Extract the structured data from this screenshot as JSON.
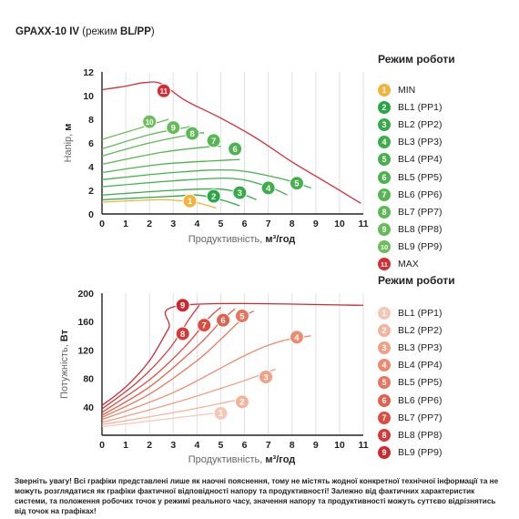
{
  "title": {
    "model": "GPAXX-10 IV",
    "mode_text": "(режим ",
    "mode_value": "BL/PP",
    "mode_close": ")"
  },
  "colors": {
    "green": [
      "#29a745",
      "#37ab49",
      "#3eae4a",
      "#45b04c",
      "#4eb34f",
      "#56b652",
      "#5db955",
      "#64bc57",
      "#6bbf59"
    ],
    "min": "#f3b33b",
    "max": "#d62d35",
    "red": [
      "#f5c8b6",
      "#f3b49c",
      "#f0a085",
      "#ec8b6f",
      "#e8765c",
      "#e2614d",
      "#dc4d41",
      "#d53a38",
      "#cc2a31"
    ],
    "axis": "#222222",
    "grid": "#e0e0e0"
  },
  "legend_head": {
    "title": "Режим роботи",
    "items": [
      {
        "badge": "1",
        "label": "MIN"
      },
      {
        "badge": "2",
        "label": "BL1 (PP1)"
      },
      {
        "badge": "3",
        "label": "BL2 (PP2)"
      },
      {
        "badge": "4",
        "label": "BL3 (PP3)"
      },
      {
        "badge": "5",
        "label": "BL4 (PP4)"
      },
      {
        "badge": "6",
        "label": "BL5 (PP5)"
      },
      {
        "badge": "7",
        "label": "BL6 (PP6)"
      },
      {
        "badge": "8",
        "label": "BL7 (PP7)"
      },
      {
        "badge": "9",
        "label": "BL8 (PP8)"
      },
      {
        "badge": "10",
        "label": "BL9 (PP9)"
      },
      {
        "badge": "11",
        "label": "MAX"
      }
    ]
  },
  "legend_power": {
    "title": "Режим роботи",
    "items": [
      {
        "badge": "1",
        "label": "BL1 (PP1)"
      },
      {
        "badge": "2",
        "label": "BL2 (PP2)"
      },
      {
        "badge": "3",
        "label": "BL3 (PP3)"
      },
      {
        "badge": "4",
        "label": "BL4 (PP4)"
      },
      {
        "badge": "5",
        "label": "BL5 (PP5)"
      },
      {
        "badge": "6",
        "label": "BL6 (PP6)"
      },
      {
        "badge": "7",
        "label": "BL7 (PP7)"
      },
      {
        "badge": "8",
        "label": "BL8 (PP8)"
      },
      {
        "badge": "9",
        "label": "BL9 (PP9)"
      }
    ]
  },
  "note": "Зверніть увагу! Всі графіки представлені лише як наочні пояснення, тому не містять жодної конкретної технічної інформації та не можуть розглядатися як графіки фактичної відповідності напору та продуктивності! Залежно від фактичних характеристик системи, та положення робочих точок у режимі реального часу, значення напору та продуктивності можуть суттєво відрізнятись від точок на графіках!",
  "chart_data": [
    {
      "type": "line",
      "ylabel_prefix": "Напір,",
      "ylabel_unit": "м",
      "xlabel_prefix": "Продуктивність,",
      "xlabel_unit": "м³/год",
      "xlim": [
        0,
        11
      ],
      "ylim": [
        0,
        12
      ],
      "xticks": [
        "0",
        "1",
        "2",
        "3",
        "4",
        "5",
        "6",
        "7",
        "8",
        "9",
        "10",
        "11"
      ],
      "yticks": [
        "0",
        "2",
        "4",
        "6",
        "8",
        "10",
        "12"
      ],
      "grid": "vertical",
      "series": [
        {
          "badge": "1",
          "color_key": "min",
          "points": [
            [
              0,
              1.0
            ],
            [
              2.5,
              1.2
            ],
            [
              3.8,
              1.0
            ],
            [
              4.3,
              0.8
            ],
            [
              4.8,
              0.5
            ]
          ],
          "marker": [
            3.7,
            1.1
          ]
        },
        {
          "badge": "2",
          "color_key": "green.0",
          "points": [
            [
              0,
              1.2
            ],
            [
              3.0,
              1.5
            ],
            [
              4.0,
              1.6
            ],
            [
              5.0,
              1.2
            ],
            [
              5.8,
              0.7
            ]
          ],
          "marker": [
            4.7,
            1.5
          ]
        },
        {
          "badge": "3",
          "color_key": "green.1",
          "points": [
            [
              0,
              1.6
            ],
            [
              3.0,
              2.0
            ],
            [
              5.0,
              2.1
            ],
            [
              6.0,
              1.6
            ],
            [
              6.5,
              1.2
            ]
          ],
          "marker": [
            5.8,
            1.8
          ]
        },
        {
          "badge": "4",
          "color_key": "green.2",
          "points": [
            [
              0,
              2.3
            ],
            [
              3.0,
              2.8
            ],
            [
              5.5,
              3.0
            ],
            [
              7.0,
              2.3
            ],
            [
              7.8,
              1.6
            ]
          ],
          "marker": [
            7.0,
            2.2
          ]
        },
        {
          "badge": "5",
          "color_key": "green.3",
          "points": [
            [
              0,
              2.9
            ],
            [
              3.0,
              3.5
            ],
            [
              5.5,
              3.7
            ],
            [
              7.5,
              3.0
            ],
            [
              8.8,
              2.2
            ]
          ],
          "marker": [
            8.2,
            2.6
          ]
        },
        {
          "badge": "6",
          "color_key": "green.4",
          "points": [
            [
              0,
              3.5
            ],
            [
              2.5,
              4.2
            ],
            [
              4.8,
              4.5
            ],
            [
              5.8,
              4.6
            ]
          ],
          "marker": [
            5.6,
            5.5
          ]
        },
        {
          "badge": "7",
          "color_key": "green.5",
          "points": [
            [
              0,
              4.2
            ],
            [
              2.5,
              5.2
            ],
            [
              4.6,
              5.7
            ],
            [
              5.0,
              5.7
            ]
          ],
          "marker": [
            4.7,
            6.2
          ]
        },
        {
          "badge": "8",
          "color_key": "green.6",
          "points": [
            [
              0,
              4.9
            ],
            [
              2.0,
              6.0
            ],
            [
              4.0,
              6.8
            ],
            [
              4.3,
              6.8
            ]
          ],
          "marker": [
            3.8,
            6.8
          ]
        },
        {
          "badge": "9",
          "color_key": "green.7",
          "points": [
            [
              0,
              5.5
            ],
            [
              2.0,
              6.7
            ],
            [
              3.5,
              7.3
            ],
            [
              3.7,
              7.4
            ]
          ],
          "marker": [
            3.0,
            7.3
          ]
        },
        {
          "badge": "10",
          "color_key": "green.8",
          "points": [
            [
              0,
              6.3
            ],
            [
              1.5,
              7.2
            ],
            [
              2.8,
              8.0
            ]
          ],
          "marker": [
            2.0,
            7.8
          ]
        },
        {
          "badge": "11",
          "color_key": "max",
          "points": [
            [
              0,
              10.5
            ],
            [
              1.0,
              10.8
            ],
            [
              1.8,
              11.1
            ],
            [
              2.5,
              11.0
            ],
            [
              3.5,
              9.6
            ],
            [
              5.0,
              8.1
            ],
            [
              6.5,
              6.4
            ],
            [
              8.0,
              4.4
            ],
            [
              9.5,
              2.6
            ],
            [
              10.9,
              0.9
            ]
          ],
          "marker": [
            2.6,
            10.4
          ]
        }
      ]
    },
    {
      "type": "line",
      "ylabel_prefix": "Потужність,",
      "ylabel_unit": "Вт",
      "xlabel_prefix": "Продуктивність,",
      "xlabel_unit": "м³/год",
      "xlim": [
        0,
        11
      ],
      "ylim": [
        0,
        200
      ],
      "xticks": [
        "0",
        "1",
        "2",
        "3",
        "4",
        "5",
        "6",
        "7",
        "8",
        "9",
        "10",
        "11"
      ],
      "yticks": [
        "40",
        "80",
        "120",
        "160",
        "200"
      ],
      "grid": "vertical",
      "series": [
        {
          "badge": "1",
          "color_key": "red.0",
          "points": [
            [
              0,
              12
            ],
            [
              2.0,
              20
            ],
            [
              4.0,
              28
            ],
            [
              5.3,
              33
            ]
          ],
          "marker": [
            5.0,
            31
          ]
        },
        {
          "badge": "2",
          "color_key": "red.1",
          "points": [
            [
              0,
              15
            ],
            [
              2.0,
              26
            ],
            [
              4.0,
              38
            ],
            [
              6.0,
              52
            ]
          ],
          "marker": [
            5.9,
            47
          ]
        },
        {
          "badge": "3",
          "color_key": "red.2",
          "points": [
            [
              0,
              18
            ],
            [
              3.0,
              45
            ],
            [
              6.0,
              77
            ],
            [
              7.3,
              93
            ]
          ],
          "marker": [
            6.9,
            82
          ]
        },
        {
          "badge": "4",
          "color_key": "red.3",
          "points": [
            [
              0,
              22
            ],
            [
              3.0,
              60
            ],
            [
              6.0,
              112
            ],
            [
              7.5,
              132
            ],
            [
              8.8,
              140
            ]
          ],
          "marker": [
            8.2,
            138
          ]
        },
        {
          "badge": "5",
          "color_key": "red.4",
          "points": [
            [
              0,
              25
            ],
            [
              2.0,
              58
            ],
            [
              4.0,
              105
            ],
            [
              5.0,
              135
            ],
            [
              6.0,
              167
            ],
            [
              6.4,
              175
            ]
          ],
          "marker": [
            5.9,
            168
          ]
        },
        {
          "badge": "6",
          "color_key": "red.5",
          "points": [
            [
              0,
              28
            ],
            [
              2.0,
              68
            ],
            [
              4.0,
              125
            ],
            [
              5.0,
              160
            ],
            [
              5.6,
              178
            ]
          ],
          "marker": [
            5.1,
            162
          ]
        },
        {
          "badge": "7",
          "color_key": "red.6",
          "points": [
            [
              0,
              32
            ],
            [
              2.0,
              78
            ],
            [
              3.5,
              125
            ],
            [
              4.5,
              165
            ],
            [
              5.0,
              180
            ]
          ],
          "marker": [
            4.3,
            155
          ]
        },
        {
          "badge": "8",
          "color_key": "red.7",
          "points": [
            [
              0,
              37
            ],
            [
              1.5,
              75
            ],
            [
              2.8,
              120
            ],
            [
              3.7,
              165
            ],
            [
              4.1,
              183
            ]
          ],
          "marker": [
            3.4,
            143
          ]
        },
        {
          "badge": "9",
          "color_key": "red.8",
          "points": [
            [
              0,
              42
            ],
            [
              1.0,
              68
            ],
            [
              2.0,
              105
            ],
            [
              2.8,
              150
            ],
            [
              3.4,
              183
            ],
            [
              11.0,
              183
            ]
          ],
          "marker": [
            3.4,
            183
          ]
        }
      ]
    }
  ]
}
